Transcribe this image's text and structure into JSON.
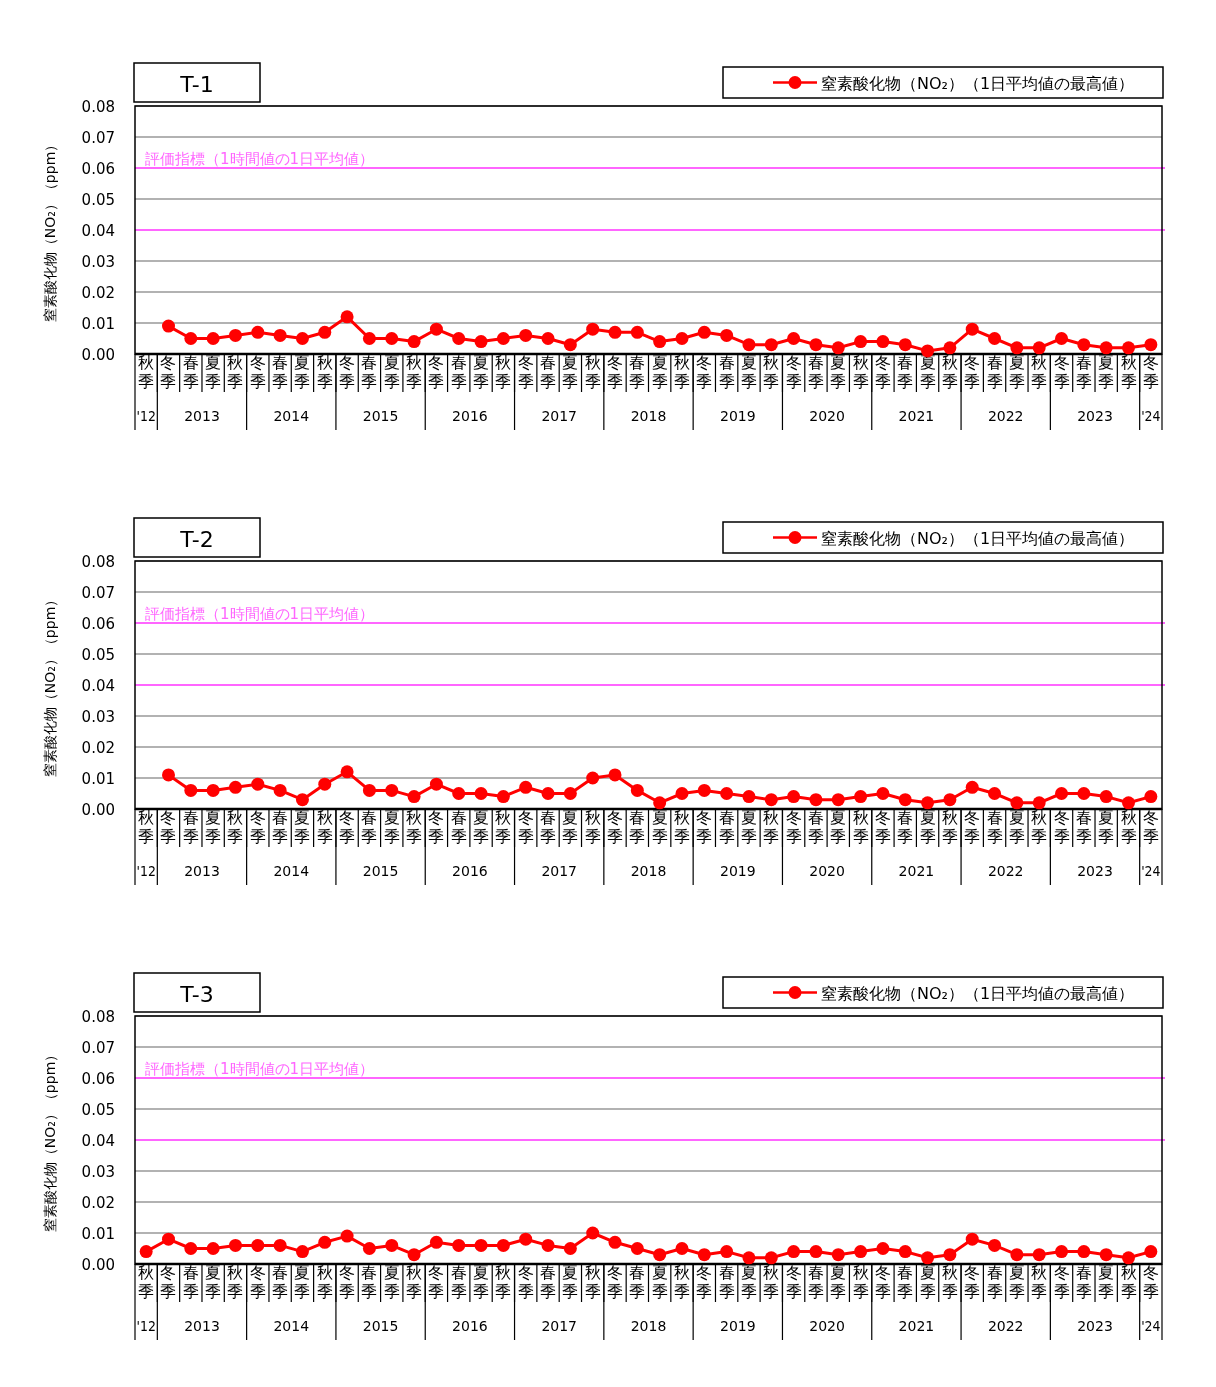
{
  "chart_data": [
    {
      "type": "line",
      "title": "T-1",
      "ylabel": "窒素酸化物（NO₂）（ppm）",
      "legend": "top right",
      "marker": "circle",
      "grid": "y",
      "categories": [
        "秋季",
        "冬季",
        "春季",
        "夏季",
        "秋季",
        "冬季",
        "春季",
        "夏季",
        "秋季",
        "冬季",
        "春季",
        "夏季",
        "秋季",
        "冬季",
        "春季",
        "夏季",
        "秋季",
        "冬季",
        "春季",
        "夏季",
        "秋季",
        "冬季",
        "春季",
        "夏季",
        "秋季",
        "冬季",
        "春季",
        "夏季",
        "秋季",
        "冬季",
        "春季",
        "夏季",
        "秋季",
        "冬季",
        "春季",
        "夏季",
        "秋季",
        "冬季",
        "春季",
        "夏季",
        "秋季",
        "冬季",
        "春季",
        "夏季",
        "秋季",
        "冬季"
      ],
      "annotations": [
        "'12",
        "2013",
        "2014",
        "2015",
        "2016",
        "2017",
        "2018",
        "2019",
        "2020",
        "2021",
        "2022",
        "2023",
        "'24"
      ],
      "ylim": [
        0,
        0.08
      ],
      "yticks": [
        {
          "value": 0,
          "label": "0.00"
        },
        {
          "value": 0.01,
          "label": "0.01"
        },
        {
          "value": 0.02,
          "label": "0.02"
        },
        {
          "value": 0.03,
          "label": "0.03"
        },
        {
          "value": 0.04,
          "label": "0.04"
        },
        {
          "value": 0.05,
          "label": "0.05"
        },
        {
          "value": 0.06,
          "label": "0.06"
        },
        {
          "value": 0.07,
          "label": "0.07"
        },
        {
          "value": 0.08,
          "label": "0.08"
        }
      ],
      "ref_lines": [
        {
          "axis": "y",
          "value": 0.06,
          "label": "評価指標（1時間値の1日平均値）",
          "color": "#ff66ff"
        },
        {
          "axis": "y",
          "value": 0.04,
          "label": null,
          "color": "#ff66ff"
        }
      ],
      "series": [
        {
          "name": "窒素酸化物（NO₂）（1日平均値の最高値）",
          "color": "#ff0000",
          "values": [
            null,
            0.009,
            0.005,
            0.005,
            0.006,
            0.007,
            0.006,
            0.005,
            0.007,
            0.012,
            0.005,
            0.005,
            0.004,
            0.008,
            0.005,
            0.004,
            0.005,
            0.006,
            0.005,
            0.003,
            0.008,
            0.007,
            0.007,
            0.004,
            0.005,
            0.007,
            0.006,
            0.003,
            0.003,
            0.005,
            0.003,
            0.002,
            0.004,
            0.004,
            0.003,
            0.001,
            0.002,
            0.008,
            0.005,
            0.002,
            0.002,
            0.005,
            0.003,
            0.002,
            0.002,
            0.003
          ]
        }
      ]
    },
    {
      "type": "line",
      "title": "T-2",
      "ylabel": "窒素酸化物（NO₂）（ppm）",
      "legend": "top right",
      "marker": "circle",
      "grid": "y",
      "categories": [
        "秋季",
        "冬季",
        "春季",
        "夏季",
        "秋季",
        "冬季",
        "春季",
        "夏季",
        "秋季",
        "冬季",
        "春季",
        "夏季",
        "秋季",
        "冬季",
        "春季",
        "夏季",
        "秋季",
        "冬季",
        "春季",
        "夏季",
        "秋季",
        "冬季",
        "春季",
        "夏季",
        "秋季",
        "冬季",
        "春季",
        "夏季",
        "秋季",
        "冬季",
        "春季",
        "夏季",
        "秋季",
        "冬季",
        "春季",
        "夏季",
        "秋季",
        "冬季",
        "春季",
        "夏季",
        "秋季",
        "冬季",
        "春季",
        "夏季",
        "秋季",
        "冬季"
      ],
      "annotations": [
        "'12",
        "2013",
        "2014",
        "2015",
        "2016",
        "2017",
        "2018",
        "2019",
        "2020",
        "2021",
        "2022",
        "2023",
        "'24"
      ],
      "ylim": [
        0,
        0.08
      ],
      "yticks": [
        {
          "value": 0,
          "label": "0.00"
        },
        {
          "value": 0.01,
          "label": "0.01"
        },
        {
          "value": 0.02,
          "label": "0.02"
        },
        {
          "value": 0.03,
          "label": "0.03"
        },
        {
          "value": 0.04,
          "label": "0.04"
        },
        {
          "value": 0.05,
          "label": "0.05"
        },
        {
          "value": 0.06,
          "label": "0.06"
        },
        {
          "value": 0.07,
          "label": "0.07"
        },
        {
          "value": 0.08,
          "label": "0.08"
        }
      ],
      "ref_lines": [
        {
          "axis": "y",
          "value": 0.06,
          "label": "評価指標（1時間値の1日平均値）",
          "color": "#ff66ff"
        },
        {
          "axis": "y",
          "value": 0.04,
          "label": null,
          "color": "#ff66ff"
        }
      ],
      "series": [
        {
          "name": "窒素酸化物（NO₂）（1日平均値の最高値）",
          "color": "#ff0000",
          "values": [
            null,
            0.011,
            0.006,
            0.006,
            0.007,
            0.008,
            0.006,
            0.003,
            0.008,
            0.012,
            0.006,
            0.006,
            0.004,
            0.008,
            0.005,
            0.005,
            0.004,
            0.007,
            0.005,
            0.005,
            0.01,
            0.011,
            0.006,
            0.002,
            0.005,
            0.006,
            0.005,
            0.004,
            0.003,
            0.004,
            0.003,
            0.003,
            0.004,
            0.005,
            0.003,
            0.002,
            0.003,
            0.007,
            0.005,
            0.002,
            0.002,
            0.005,
            0.005,
            0.004,
            0.002,
            0.004
          ]
        }
      ]
    },
    {
      "type": "line",
      "title": "T-3",
      "ylabel": "窒素酸化物（NO₂）（ppm）",
      "legend": "top right",
      "marker": "circle",
      "grid": "y",
      "categories": [
        "秋季",
        "冬季",
        "春季",
        "夏季",
        "秋季",
        "冬季",
        "春季",
        "夏季",
        "秋季",
        "冬季",
        "春季",
        "夏季",
        "秋季",
        "冬季",
        "春季",
        "夏季",
        "秋季",
        "冬季",
        "春季",
        "夏季",
        "秋季",
        "冬季",
        "春季",
        "夏季",
        "秋季",
        "冬季",
        "春季",
        "夏季",
        "秋季",
        "冬季",
        "春季",
        "夏季",
        "秋季",
        "冬季",
        "春季",
        "夏季",
        "秋季",
        "冬季",
        "春季",
        "夏季",
        "秋季",
        "冬季",
        "春季",
        "夏季",
        "秋季",
        "冬季"
      ],
      "annotations": [
        "'12",
        "2013",
        "2014",
        "2015",
        "2016",
        "2017",
        "2018",
        "2019",
        "2020",
        "2021",
        "2022",
        "2023",
        "'24"
      ],
      "ylim": [
        0,
        0.08
      ],
      "yticks": [
        {
          "value": 0,
          "label": "0.00"
        },
        {
          "value": 0.01,
          "label": "0.01"
        },
        {
          "value": 0.02,
          "label": "0.02"
        },
        {
          "value": 0.03,
          "label": "0.03"
        },
        {
          "value": 0.04,
          "label": "0.04"
        },
        {
          "value": 0.05,
          "label": "0.05"
        },
        {
          "value": 0.06,
          "label": "0.06"
        },
        {
          "value": 0.07,
          "label": "0.07"
        },
        {
          "value": 0.08,
          "label": "0.08"
        }
      ],
      "ref_lines": [
        {
          "axis": "y",
          "value": 0.06,
          "label": "評価指標（1時間値の1日平均値）",
          "color": "#ff66ff"
        },
        {
          "axis": "y",
          "value": 0.04,
          "label": null,
          "color": "#ff66ff"
        }
      ],
      "series": [
        {
          "name": "窒素酸化物（NO₂）（1日平均値の最高値）",
          "color": "#ff0000",
          "values": [
            0.004,
            0.008,
            0.005,
            0.005,
            0.006,
            0.006,
            0.006,
            0.004,
            0.007,
            0.009,
            0.005,
            0.006,
            0.003,
            0.007,
            0.006,
            0.006,
            0.006,
            0.008,
            0.006,
            0.005,
            0.01,
            0.007,
            0.005,
            0.003,
            0.005,
            0.003,
            0.004,
            0.002,
            0.002,
            0.004,
            0.004,
            0.003,
            0.004,
            0.005,
            0.004,
            0.002,
            0.003,
            0.008,
            0.006,
            0.003,
            0.003,
            0.004,
            0.004,
            0.003,
            0.002,
            0.004
          ]
        }
      ]
    }
  ]
}
